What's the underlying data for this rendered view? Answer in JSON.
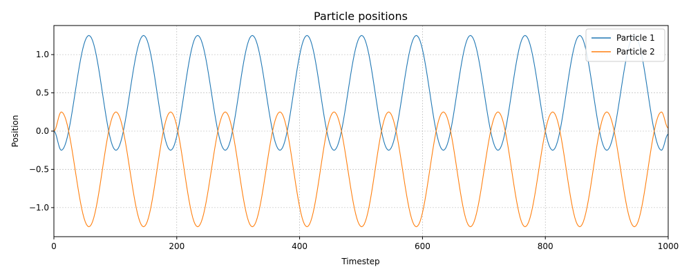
{
  "chart_data": {
    "type": "line",
    "title": "Particle positions",
    "xlabel": "Timestep",
    "ylabel": "Position",
    "xlim": [
      0,
      1000
    ],
    "ylim": [
      -1.38,
      1.38
    ],
    "xticks": [
      0,
      200,
      400,
      600,
      800,
      1000
    ],
    "xtick_labels": [
      "0",
      "200",
      "400",
      "600",
      "800",
      "1000"
    ],
    "yticks": [
      -1.0,
      -0.5,
      0.0,
      0.5,
      1.0
    ],
    "ytick_labels": [
      "−1.0",
      "−0.5",
      "0.0",
      "0.5",
      "1.0"
    ],
    "grid": true,
    "legend_position": "top-right",
    "series": [
      {
        "name": "Particle 1",
        "color": "#1f77b4",
        "x": [
          0,
          12,
          57,
          101,
          146,
          190,
          234,
          279,
          323,
          368,
          412,
          456,
          501,
          545,
          590,
          634,
          678,
          723,
          767,
          812,
          856,
          900,
          945,
          989,
          1000
        ],
        "y": [
          0.0,
          -0.25,
          1.25,
          -0.25,
          1.25,
          -0.25,
          1.25,
          -0.25,
          1.25,
          -0.25,
          1.25,
          -0.25,
          1.25,
          -0.25,
          1.25,
          -0.25,
          1.25,
          -0.25,
          1.25,
          -0.25,
          1.25,
          -0.25,
          1.25,
          -0.25,
          -0.04
        ]
      },
      {
        "name": "Particle 2",
        "color": "#ff7f0e",
        "x": [
          0,
          12,
          57,
          101,
          146,
          190,
          234,
          279,
          323,
          368,
          412,
          456,
          501,
          545,
          590,
          634,
          678,
          723,
          767,
          812,
          856,
          900,
          945,
          989,
          1000
        ],
        "y": [
          0.0,
          0.25,
          -1.25,
          0.25,
          -1.25,
          0.25,
          -1.25,
          0.25,
          -1.25,
          0.25,
          -1.25,
          0.25,
          -1.25,
          0.25,
          -1.25,
          0.25,
          -1.25,
          0.25,
          -1.25,
          0.25,
          -1.25,
          0.25,
          -1.25,
          0.25,
          0.04
        ]
      }
    ]
  }
}
